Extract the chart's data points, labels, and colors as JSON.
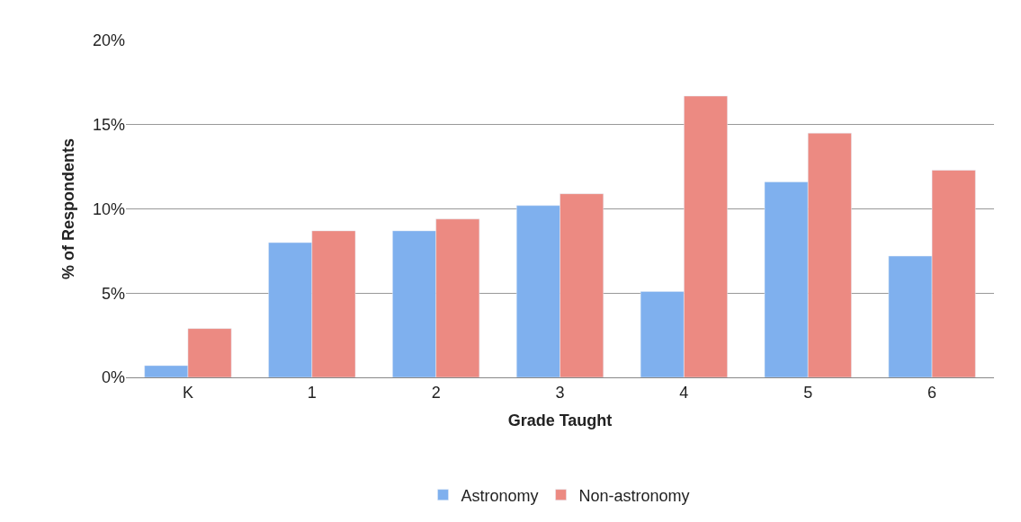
{
  "chart_data": {
    "type": "bar",
    "xlabel": "Grade Taught",
    "ylabel": "% of Respondents",
    "categories": [
      "K",
      "1",
      "2",
      "3",
      "4",
      "5",
      "6"
    ],
    "series": [
      {
        "name": "Astronomy",
        "color": "#7fb0ee",
        "values": [
          0.7,
          8.0,
          8.7,
          10.2,
          5.1,
          11.6,
          7.2
        ]
      },
      {
        "name": "Non-astronomy",
        "color": "#ec8a82",
        "values": [
          2.9,
          8.7,
          9.4,
          10.9,
          16.7,
          14.5,
          12.3
        ]
      }
    ],
    "ylim": [
      0,
      20
    ],
    "yticks": [
      {
        "value": 0,
        "label": "0%"
      },
      {
        "value": 5,
        "label": "5%"
      },
      {
        "value": 10,
        "label": "10%"
      },
      {
        "value": 15,
        "label": "15%"
      },
      {
        "value": 20,
        "label": "20%"
      }
    ],
    "grid": "y",
    "legend": "bottom"
  }
}
